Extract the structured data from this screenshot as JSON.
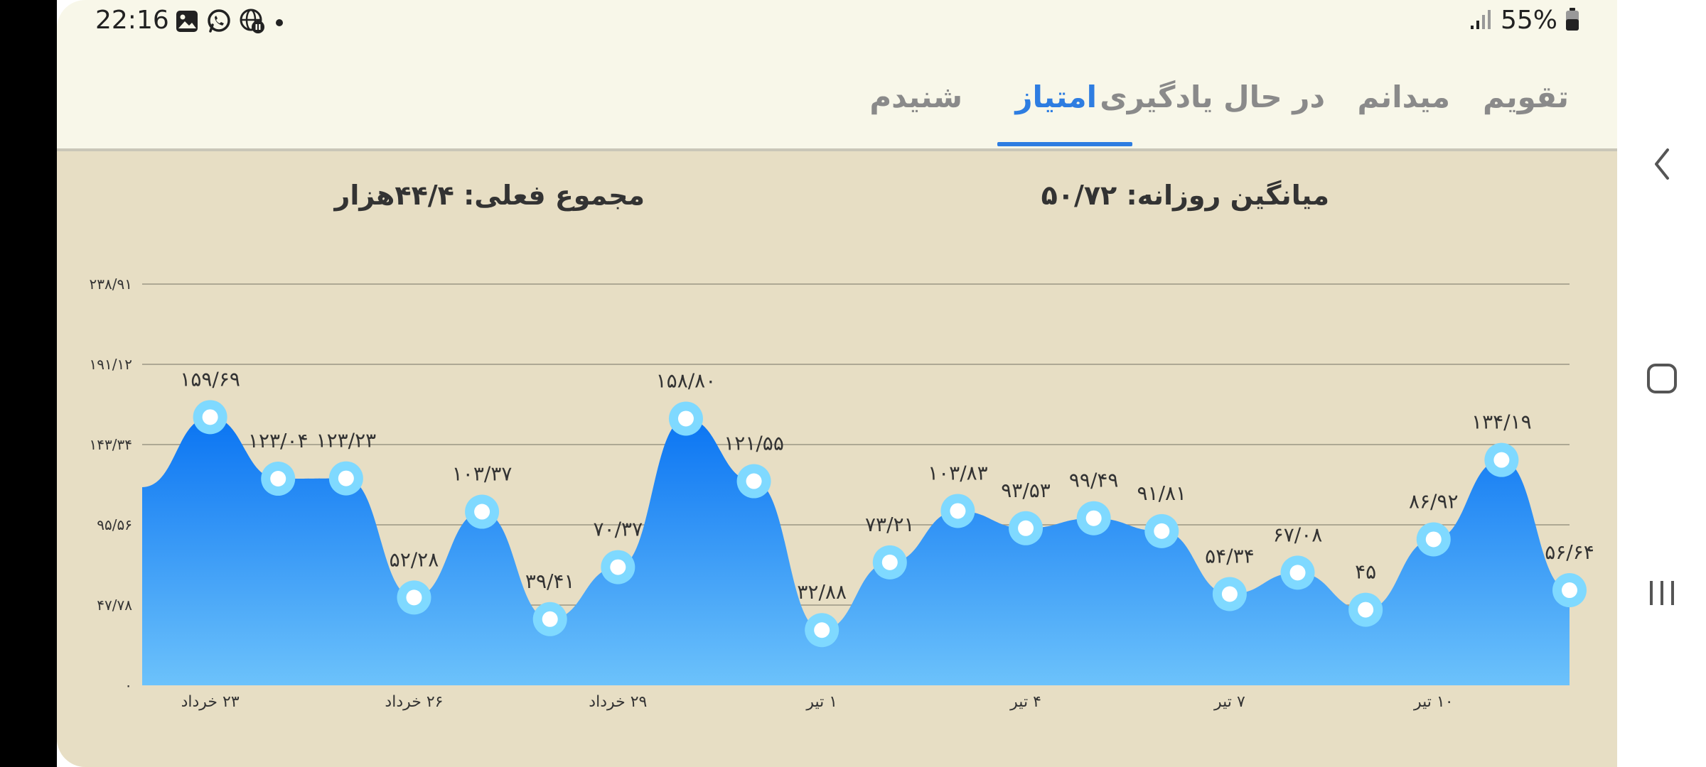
{
  "status_bar": {
    "time": "22:16",
    "icons": [
      "gallery-icon",
      "whatsapp-icon",
      "globe-pause-icon",
      "dot-icon"
    ],
    "battery_percent": "55%",
    "signal_icon": "signal-icon",
    "battery_icon": "battery-icon"
  },
  "tabs": [
    {
      "label": "تقویم",
      "active": false
    },
    {
      "label": "میدانم",
      "active": false
    },
    {
      "label": "در حال یادگیری",
      "active": false
    },
    {
      "label": "امتیاز",
      "active": true
    },
    {
      "label": "شنیدم",
      "active": false
    }
  ],
  "summary": {
    "daily_average": "میانگین روزانه: ۵۰/۷۲",
    "current_total": "مجموع فعلی: ۴۴/۴هزار"
  },
  "colors": {
    "accent": "#2e7de1",
    "area_top": "#0a74f2",
    "area_bottom": "#6cc2fb",
    "marker_ring": "#7fd9ff",
    "background": "#e7dec4"
  },
  "chart_data": {
    "type": "area",
    "ylim": [
      0,
      238.91
    ],
    "y_ticks": [
      {
        "value": 0,
        "label": "۰"
      },
      {
        "value": 47.78,
        "label": "۴۷/۷۸"
      },
      {
        "value": 95.56,
        "label": "۹۵/۵۶"
      },
      {
        "value": 143.34,
        "label": "۱۴۳/۳۴"
      },
      {
        "value": 191.12,
        "label": "۱۹۱/۱۲"
      },
      {
        "value": 238.91,
        "label": "۲۳۸/۹۱"
      }
    ],
    "x_tick_labels": [
      {
        "index": 1,
        "label": "۲۳ خرداد"
      },
      {
        "index": 4,
        "label": "۲۶ خرداد"
      },
      {
        "index": 7,
        "label": "۲۹ خرداد"
      },
      {
        "index": 10,
        "label": "۱ تیر"
      },
      {
        "index": 13,
        "label": "۴ تیر"
      },
      {
        "index": 16,
        "label": "۷ تیر"
      },
      {
        "index": 19,
        "label": "۱۰ تیر"
      }
    ],
    "series": [
      {
        "values": [
          118,
          159.69,
          123.04,
          123.23,
          52.28,
          103.37,
          39.41,
          70.37,
          158.8,
          121.55,
          32.88,
          73.21,
          103.83,
          93.53,
          99.49,
          91.81,
          54.34,
          67.08,
          45,
          86.92,
          134.19,
          56.64
        ],
        "point_labels": [
          "",
          "۱۵۹/۶۹",
          "۱۲۳/۰۴",
          "۱۲۳/۲۳",
          "۵۲/۲۸",
          "۱۰۳/۳۷",
          "۳۹/۴۱",
          "۷۰/۳۷",
          "۱۵۸/۸۰",
          "۱۲۱/۵۵",
          "۳۲/۸۸",
          "۷۳/۲۱",
          "۱۰۳/۸۳",
          "۹۳/۵۳",
          "۹۹/۴۹",
          "۹۱/۸۱",
          "۵۴/۳۴",
          "۶۷/۰۸",
          "۴۵",
          "۸۶/۹۲",
          "۱۳۴/۱۹",
          "۵۶/۶۴"
        ],
        "markers": [
          false,
          true,
          true,
          true,
          true,
          true,
          true,
          true,
          true,
          true,
          true,
          true,
          true,
          true,
          true,
          true,
          true,
          true,
          true,
          true,
          true,
          true
        ]
      }
    ],
    "grid": true
  },
  "navigation": {
    "back_icon": "chevron-left-icon",
    "home_icon": "home-square-icon",
    "recents_icon": "recents-icon"
  }
}
